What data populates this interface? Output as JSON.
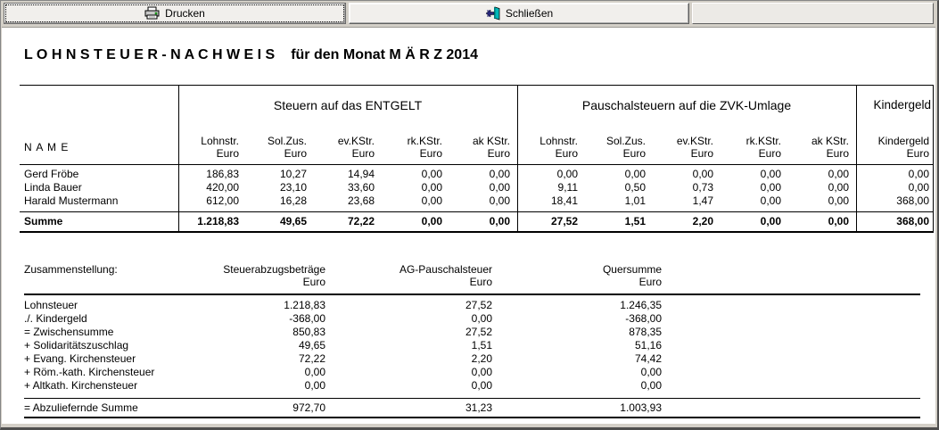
{
  "toolbar": {
    "print_label": "Drucken",
    "close_label": "Schließen"
  },
  "title": {
    "main": "L O H N S T E U E R   -   N A C H W E I S",
    "suffix": "für den Monat   M Ä R Z   2014"
  },
  "tax_table": {
    "name_header": "N A M E",
    "groups": [
      {
        "label": "Steuern auf das ENTGELT"
      },
      {
        "label": "Pauschalsteuern auf die ZVK-Umlage"
      },
      {
        "label": "Kindergeld"
      }
    ],
    "sub_columns": [
      "Lohnstr.",
      "Sol.Zus.",
      "ev.KStr.",
      "rk.KStr.",
      "ak KStr."
    ],
    "kindergeld_column": "Kindergeld",
    "unit": "Euro",
    "rows": [
      {
        "name": "Gerd Fröbe",
        "values": [
          "186,83",
          "10,27",
          "14,94",
          "0,00",
          "0,00",
          "0,00",
          "0,00",
          "0,00",
          "0,00",
          "0,00",
          "0,00"
        ]
      },
      {
        "name": "Linda Bauer",
        "values": [
          "420,00",
          "23,10",
          "33,60",
          "0,00",
          "0,00",
          "9,11",
          "0,50",
          "0,73",
          "0,00",
          "0,00",
          "0,00"
        ]
      },
      {
        "name": "Harald Mustermann",
        "values": [
          "612,00",
          "16,28",
          "23,68",
          "0,00",
          "0,00",
          "18,41",
          "1,01",
          "1,47",
          "0,00",
          "0,00",
          "368,00"
        ]
      }
    ],
    "total": {
      "name": "Summe",
      "values": [
        "1.218,83",
        "49,65",
        "72,22",
        "0,00",
        "0,00",
        "27,52",
        "1,51",
        "2,20",
        "0,00",
        "0,00",
        "368,00"
      ]
    }
  },
  "summary_table": {
    "title": "Zusammenstellung:",
    "columns": [
      "Steuerabzugsbeträge",
      "AG-Pauschalsteuer",
      "Quersumme"
    ],
    "unit": "Euro",
    "rows": [
      {
        "label": "Lohnsteuer",
        "values": [
          "1.218,83",
          "27,52",
          "1.246,35"
        ]
      },
      {
        "label": "./. Kindergeld",
        "values": [
          "-368,00",
          "0,00",
          "-368,00"
        ]
      },
      {
        "label": "= Zwischensumme",
        "values": [
          "850,83",
          "27,52",
          "878,35"
        ]
      },
      {
        "label": "+ Solidaritätszuschlag",
        "values": [
          "49,65",
          "1,51",
          "51,16"
        ]
      },
      {
        "label": "+ Evang. Kirchensteuer",
        "values": [
          "72,22",
          "2,20",
          "74,42"
        ]
      },
      {
        "label": "+ Röm.-kath. Kirchensteuer",
        "values": [
          "0,00",
          "0,00",
          "0,00"
        ]
      },
      {
        "label": "+ Altkath. Kirchensteuer",
        "values": [
          "0,00",
          "0,00",
          "0,00"
        ]
      }
    ],
    "total": {
      "label": "= Abzuliefernde Summe",
      "values": [
        "972,70",
        "31,23",
        "1.003,93"
      ]
    }
  },
  "icons": {
    "print": "printer-icon",
    "close": "exit-door-icon"
  },
  "colors": {
    "toolbar_bg": "#d4d0c8",
    "button_face": "#f1efec",
    "report_bg": "#ffffff",
    "text": "#000000",
    "printer_led_green": "#2dbe2d",
    "door_teal": "#00b8b8",
    "arrow_navy": "#26267a"
  }
}
